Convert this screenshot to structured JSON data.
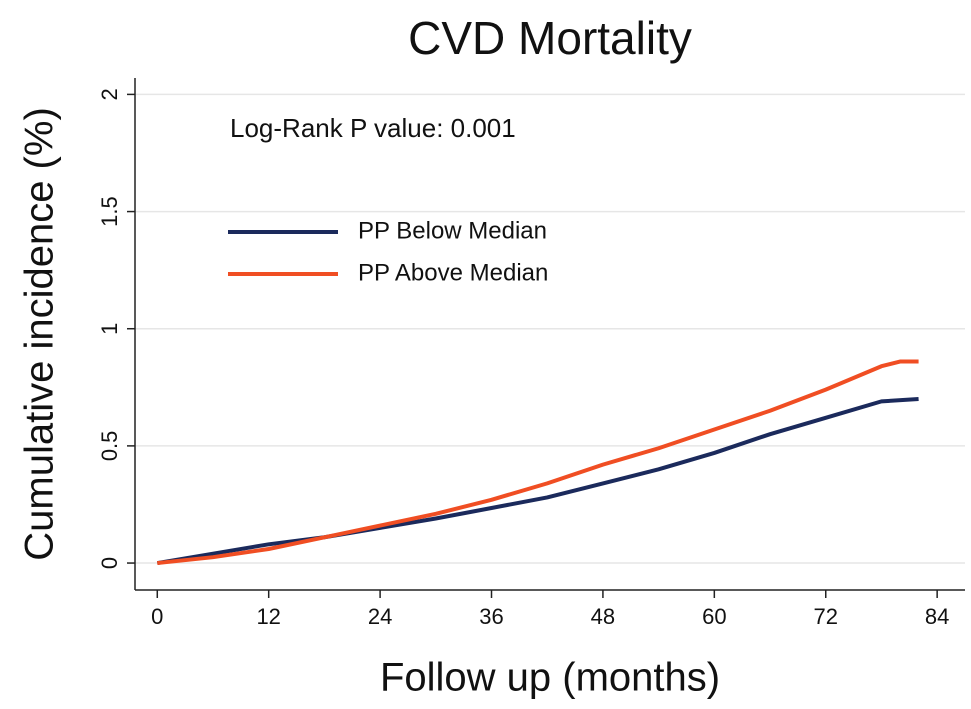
{
  "chart_data": {
    "type": "line",
    "title": "CVD Mortality",
    "xlabel": "Follow up (months)",
    "ylabel": "Cumulative incidence (%)",
    "annotation": "Log-Rank P value: 0.001",
    "xlim": [
      -2.4,
      87
    ],
    "xticks": [
      0,
      12,
      24,
      36,
      48,
      60,
      72,
      84
    ],
    "ylim": [
      -0.115,
      2.07
    ],
    "yticks": [
      0,
      0.5,
      1,
      1.5,
      2
    ],
    "grid": true,
    "legend": "upper left",
    "series": [
      {
        "name": "PP Below Median",
        "color": "#1b2a5c",
        "x": [
          0,
          6,
          12,
          18,
          24,
          30,
          36,
          42,
          48,
          54,
          60,
          66,
          72,
          78,
          82
        ],
        "values": [
          0,
          0.04,
          0.08,
          0.11,
          0.15,
          0.19,
          0.235,
          0.28,
          0.34,
          0.4,
          0.47,
          0.55,
          0.62,
          0.69,
          0.7
        ]
      },
      {
        "name": "PP Above Median",
        "color": "#f04e23",
        "x": [
          0,
          6,
          12,
          18,
          24,
          30,
          36,
          42,
          48,
          54,
          60,
          66,
          72,
          78,
          80,
          82
        ],
        "values": [
          0,
          0.025,
          0.06,
          0.11,
          0.16,
          0.21,
          0.27,
          0.34,
          0.42,
          0.49,
          0.57,
          0.65,
          0.74,
          0.84,
          0.86,
          0.86
        ]
      }
    ]
  }
}
